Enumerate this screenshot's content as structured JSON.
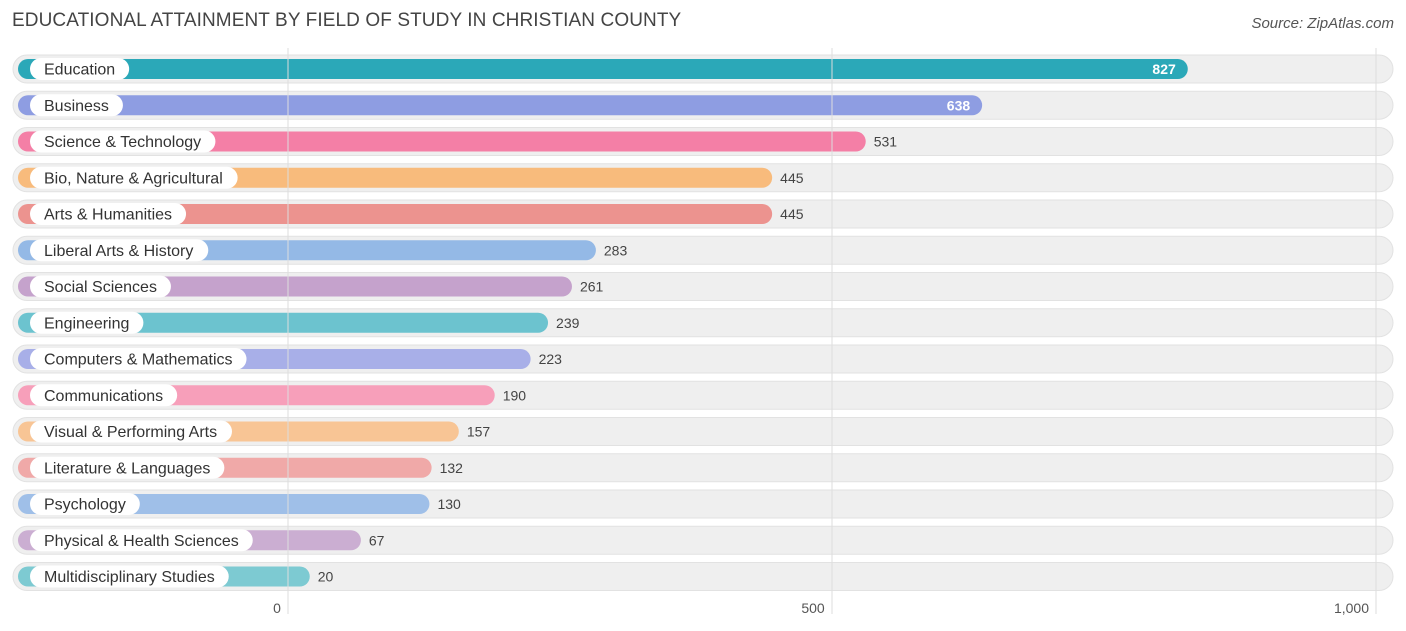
{
  "title": "EDUCATIONAL ATTAINMENT BY FIELD OF STUDY IN CHRISTIAN COUNTY",
  "source": "Source: ZipAtlas.com",
  "chart_data": {
    "type": "bar",
    "orientation": "horizontal",
    "title": "EDUCATIONAL ATTAINMENT BY FIELD OF STUDY IN CHRISTIAN COUNTY",
    "xlabel": "",
    "ylabel": "",
    "xlim": [
      0,
      1000
    ],
    "ticks": [
      0,
      500,
      1000
    ],
    "tick_labels": [
      "0",
      "500",
      "1,000"
    ],
    "grid": true,
    "categories": [
      "Education",
      "Business",
      "Science & Technology",
      "Bio, Nature & Agricultural",
      "Arts & Humanities",
      "Liberal Arts & History",
      "Social Sciences",
      "Engineering",
      "Computers & Mathematics",
      "Communications",
      "Visual & Performing Arts",
      "Literature & Languages",
      "Psychology",
      "Physical & Health Sciences",
      "Multidisciplinary Studies"
    ],
    "values": [
      827,
      638,
      531,
      445,
      445,
      283,
      261,
      239,
      223,
      190,
      157,
      132,
      130,
      67,
      20
    ],
    "value_labels": [
      "827",
      "638",
      "531",
      "445",
      "445",
      "283",
      "261",
      "239",
      "223",
      "190",
      "157",
      "132",
      "130",
      "67",
      "20"
    ],
    "colors": [
      "#2ba8b8",
      "#8e9de2",
      "#f47fa6",
      "#f8bb7c",
      "#ec938f",
      "#94b9e6",
      "#c5a2cc",
      "#6cc3cf",
      "#a8afe8",
      "#f79fba",
      "#f8c595",
      "#f0a9a8",
      "#9fbfe8",
      "#cbaed2",
      "#7dcad2"
    ],
    "track_color": "#efefef",
    "grid_color": "#dddddd"
  }
}
